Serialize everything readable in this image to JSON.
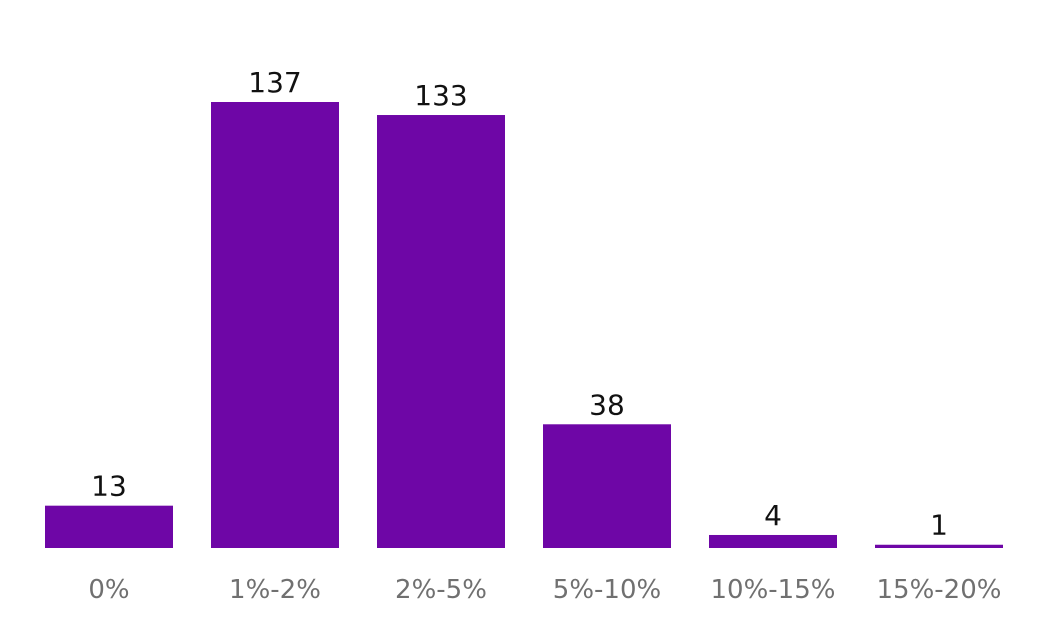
{
  "chart_data": {
    "type": "bar",
    "categories": [
      "0%",
      "1%-2%",
      "2%-5%",
      "5%-10%",
      "10%-15%",
      "15%-20%"
    ],
    "values": [
      13,
      137,
      133,
      38,
      4,
      1
    ],
    "ylim": [
      0,
      140
    ],
    "grid": false,
    "colors": {
      "bar": "#6E06A6",
      "value_label": "#111111",
      "tick_label": "#707070"
    }
  }
}
